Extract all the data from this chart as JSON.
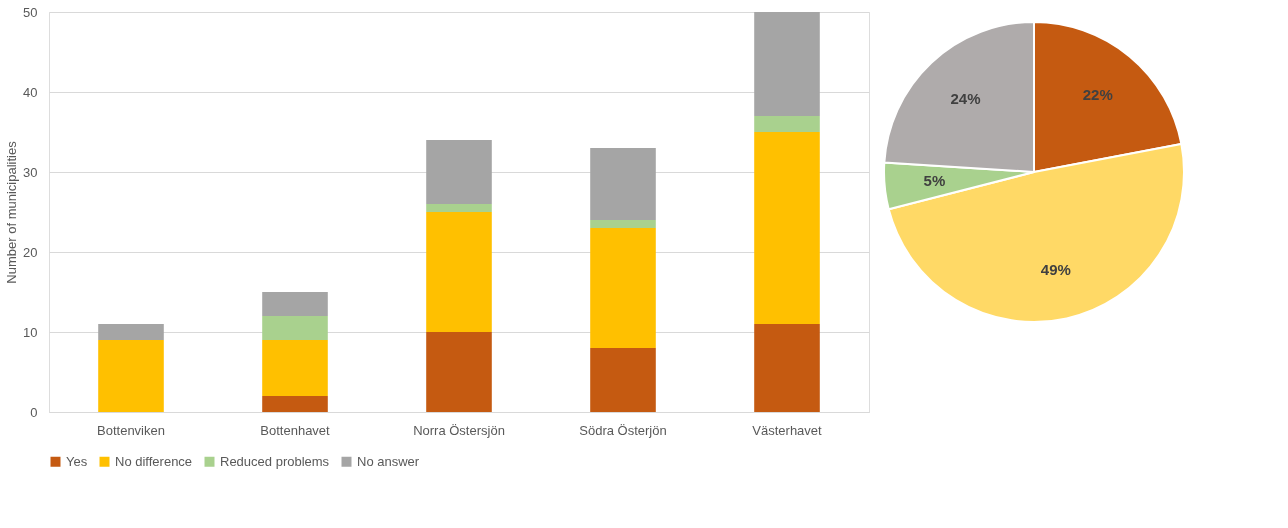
{
  "chart_data": [
    {
      "type": "bar",
      "stacked": true,
      "ylabel": "Number of municipalities",
      "categories": [
        "Bottenviken",
        "Bottenhavet",
        "Norra Östersjön",
        "Södra Österjön",
        "Västerhavet"
      ],
      "series": [
        {
          "name": "Yes",
          "color": "#c55a11",
          "values": [
            0,
            2,
            10,
            8,
            11
          ]
        },
        {
          "name": "No difference",
          "color": "#ffc000",
          "values": [
            9,
            7,
            15,
            15,
            24
          ]
        },
        {
          "name": "Reduced problems",
          "color": "#a9d18e",
          "values": [
            0,
            3,
            1,
            1,
            2
          ]
        },
        {
          "name": "No answer",
          "color": "#a5a5a5",
          "values": [
            2,
            3,
            8,
            9,
            13
          ]
        }
      ],
      "ylim": [
        0,
        50
      ],
      "yticks": [
        0,
        10,
        20,
        30,
        40,
        50
      ],
      "grid": "y",
      "legend": "bottom"
    },
    {
      "type": "pie",
      "categories": [
        null,
        null,
        null,
        null
      ],
      "values": [
        22,
        49,
        5,
        24
      ],
      "colors": [
        "#c55a11",
        "#ffd966",
        "#a9d18e",
        "#afabab"
      ],
      "value_labels": [
        "22%",
        "49%",
        "5%",
        "24%"
      ],
      "legend": false
    }
  ]
}
